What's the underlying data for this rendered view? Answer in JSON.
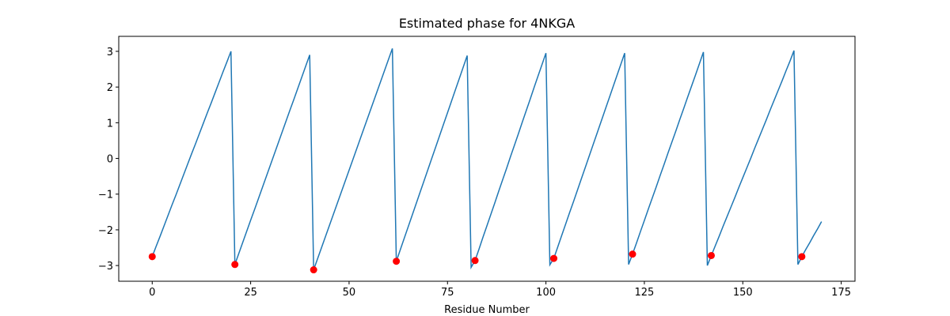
{
  "chart_data": {
    "type": "line",
    "title": "Estimated phase for 4NKGA",
    "x_label": "Residue Number",
    "xlim": [
      -8.5,
      178.5
    ],
    "ylim": [
      -3.44,
      3.42
    ],
    "xticks": [
      0,
      25,
      50,
      75,
      100,
      125,
      150,
      175
    ],
    "yticks": [
      {
        "value": -3,
        "label": "−3"
      },
      {
        "value": -2,
        "label": "−2"
      },
      {
        "value": -1,
        "label": "−1"
      },
      0,
      1,
      2,
      3
    ],
    "series": [
      {
        "color": "#1f77b4",
        "style": "line",
        "x": [
          0,
          1,
          2,
          3,
          4,
          5,
          6,
          7,
          8,
          9,
          10,
          11,
          12,
          13,
          14,
          15,
          16,
          17,
          18,
          19,
          20,
          21,
          22,
          23,
          24,
          25,
          26,
          27,
          28,
          29,
          30,
          31,
          32,
          33,
          34,
          35,
          36,
          37,
          38,
          39,
          40,
          41,
          42,
          43,
          44,
          45,
          46,
          47,
          48,
          49,
          50,
          51,
          52,
          53,
          54,
          55,
          56,
          57,
          58,
          59,
          60,
          61,
          62,
          63,
          64,
          65,
          66,
          67,
          68,
          69,
          70,
          71,
          72,
          73,
          74,
          75,
          76,
          77,
          78,
          79,
          80,
          81,
          82,
          83,
          84,
          85,
          86,
          87,
          88,
          89,
          90,
          91,
          92,
          93,
          94,
          95,
          96,
          97,
          98,
          99,
          100,
          101,
          102,
          103,
          104,
          105,
          106,
          107,
          108,
          109,
          110,
          111,
          112,
          113,
          114,
          115,
          116,
          117,
          118,
          119,
          120,
          121,
          122,
          123,
          124,
          125,
          126,
          127,
          128,
          129,
          130,
          131,
          132,
          133,
          134,
          135,
          136,
          137,
          138,
          139,
          140,
          141,
          142,
          143,
          144,
          145,
          146,
          147,
          148,
          149,
          150,
          151,
          152,
          153,
          154,
          155,
          156,
          157,
          158,
          159,
          160,
          161,
          162,
          163,
          164,
          165,
          166,
          167,
          168,
          169,
          170
        ],
        "values": [
          -2.75,
          -2.46,
          -2.18,
          -1.89,
          -1.6,
          -1.31,
          -1.03,
          -0.74,
          -0.45,
          -0.16,
          0.13,
          0.41,
          0.7,
          0.99,
          1.28,
          1.56,
          1.85,
          2.14,
          2.43,
          2.71,
          3.0,
          -2.97,
          -2.66,
          -2.35,
          -2.04,
          -1.73,
          -1.43,
          -1.12,
          -0.81,
          -0.5,
          -0.19,
          0.12,
          0.43,
          0.74,
          1.05,
          1.36,
          1.66,
          1.97,
          2.28,
          2.59,
          2.9,
          -3.12,
          -2.81,
          -2.5,
          -2.19,
          -1.88,
          -1.57,
          -1.26,
          -0.95,
          -0.64,
          -0.33,
          -0.02,
          0.29,
          0.6,
          0.91,
          1.22,
          1.53,
          1.84,
          2.15,
          2.46,
          2.77,
          3.08,
          -2.88,
          -2.56,
          -2.24,
          -1.92,
          -1.6,
          -1.28,
          -0.96,
          -0.64,
          -0.32,
          0.0,
          0.32,
          0.64,
          0.96,
          1.28,
          1.6,
          1.92,
          2.24,
          2.56,
          2.88,
          -3.05,
          -2.86,
          -2.54,
          -2.21,
          -1.89,
          -1.57,
          -1.25,
          -0.92,
          -0.6,
          -0.28,
          0.05,
          0.37,
          0.69,
          1.02,
          1.34,
          1.66,
          1.99,
          2.31,
          2.63,
          2.95,
          -2.98,
          -2.8,
          -2.48,
          -2.16,
          -1.84,
          -1.52,
          -1.21,
          -0.89,
          -0.57,
          -0.25,
          0.07,
          0.39,
          0.71,
          1.03,
          1.35,
          1.67,
          1.99,
          2.31,
          2.63,
          2.95,
          -2.97,
          -2.68,
          -2.37,
          -2.05,
          -1.74,
          -1.42,
          -1.11,
          -0.8,
          -0.48,
          -0.17,
          0.15,
          0.46,
          0.77,
          1.09,
          1.4,
          1.72,
          2.03,
          2.34,
          2.66,
          2.98,
          -3.0,
          -2.72,
          -2.45,
          -2.18,
          -1.9,
          -1.63,
          -1.36,
          -1.09,
          -0.81,
          -0.54,
          -0.27,
          0.0,
          0.28,
          0.55,
          0.82,
          1.09,
          1.37,
          1.64,
          1.91,
          2.18,
          2.46,
          2.73,
          3.02,
          -2.97,
          -2.75,
          -2.55,
          -2.36,
          -2.16,
          -1.97,
          -1.77
        ]
      },
      {
        "color": "#ff0000",
        "style": "marker",
        "x": [
          0,
          21,
          41,
          62,
          82,
          102,
          122,
          142,
          165
        ],
        "values": [
          -2.75,
          -2.97,
          -3.12,
          -2.88,
          -2.86,
          -2.8,
          -2.68,
          -2.72,
          -2.75
        ]
      }
    ]
  }
}
